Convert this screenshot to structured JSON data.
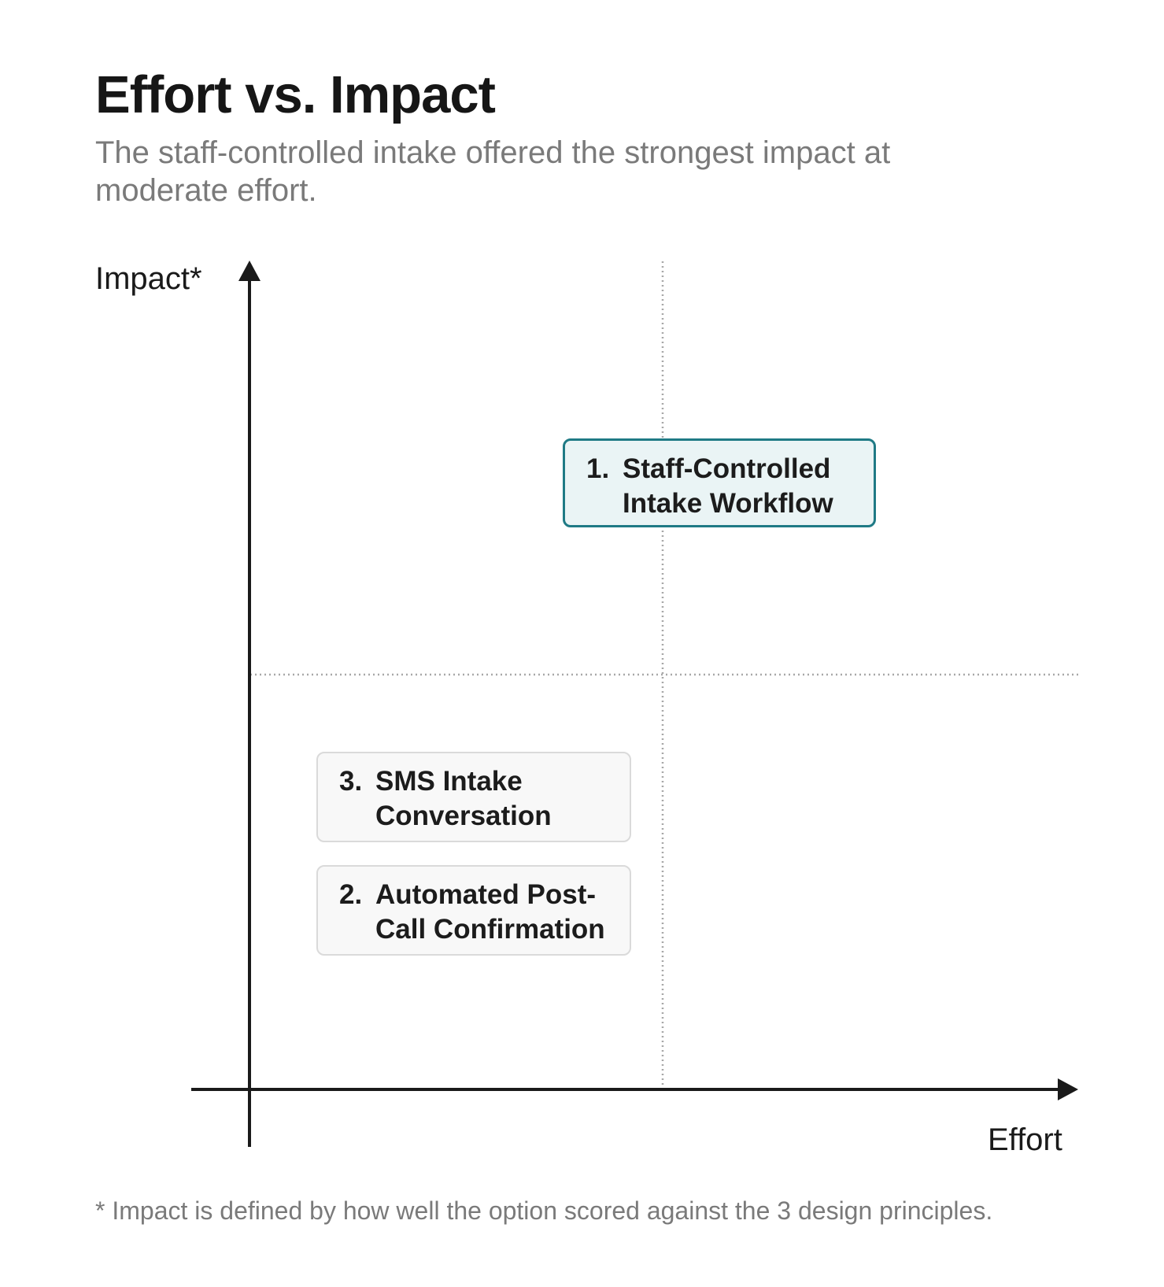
{
  "header": {
    "title": "Effort vs. Impact",
    "subtitle": "The staff-controlled intake offered the strongest impact at moderate effort."
  },
  "axes": {
    "y_label": "Impact*",
    "x_label": "Effort"
  },
  "options": [
    {
      "number": "1.",
      "name": "Staff-Controlled Intake Workflow",
      "line1": "Staff-Controlled",
      "line2": "Intake Workflow",
      "highlighted": true,
      "effort": "moderate",
      "impact": "high"
    },
    {
      "number": "3.",
      "name": "SMS Intake Conversation",
      "line1": "SMS Intake",
      "line2": "Conversation",
      "highlighted": false,
      "effort": "low",
      "impact": "low"
    },
    {
      "number": "2.",
      "name": "Automated Post-Call Confirmation",
      "line1": "Automated Post-",
      "line2": "Call Confirmation",
      "highlighted": false,
      "effort": "low",
      "impact": "low"
    }
  ],
  "footnote": "* Impact is defined by how well the option scored against the 3 design principles.",
  "colors": {
    "highlight_border": "#1f7a85",
    "highlight_fill": "#eaf4f5",
    "plain_border": "#dadada",
    "plain_fill": "#f8f8f8",
    "axis": "#1a1a1a",
    "grid": "#a8a8a8",
    "muted_text": "#7a7a7a"
  }
}
